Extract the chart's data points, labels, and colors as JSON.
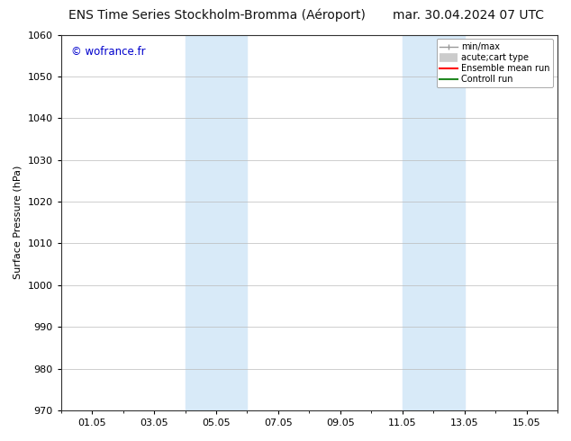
{
  "title_left": "ENS Time Series Stockholm-Bromma (Aéroport)",
  "title_right": "mar. 30.04.2024 07 UTC",
  "ylabel": "Surface Pressure (hPa)",
  "ylim": [
    970,
    1060
  ],
  "yticks": [
    970,
    980,
    990,
    1000,
    1010,
    1020,
    1030,
    1040,
    1050,
    1060
  ],
  "xtick_labels": [
    "01.05",
    "03.05",
    "05.05",
    "07.05",
    "09.05",
    "11.05",
    "13.05",
    "15.05"
  ],
  "xtick_positions": [
    1,
    3,
    5,
    7,
    9,
    11,
    13,
    15
  ],
  "xlim": [
    0,
    16
  ],
  "shaded_regions": [
    {
      "xmin": 4.0,
      "xmax": 6.0,
      "color": "#d8eaf8"
    },
    {
      "xmin": 11.0,
      "xmax": 13.0,
      "color": "#d8eaf8"
    }
  ],
  "watermark": "© wofrance.fr",
  "watermark_color": "#0000cc",
  "legend_items": [
    {
      "label": "min/max",
      "color": "#aaaaaa",
      "lw": 1.0
    },
    {
      "label": "acute;cart type",
      "color": "#cccccc",
      "lw": 6
    },
    {
      "label": "Ensemble mean run",
      "color": "#ff0000",
      "lw": 1.5
    },
    {
      "label": "Controll run",
      "color": "#228822",
      "lw": 1.5
    }
  ],
  "bg_color": "#ffffff",
  "grid_color": "#bbbbbb",
  "title_fontsize": 10,
  "axis_fontsize": 8,
  "tick_fontsize": 8,
  "legend_fontsize": 7
}
